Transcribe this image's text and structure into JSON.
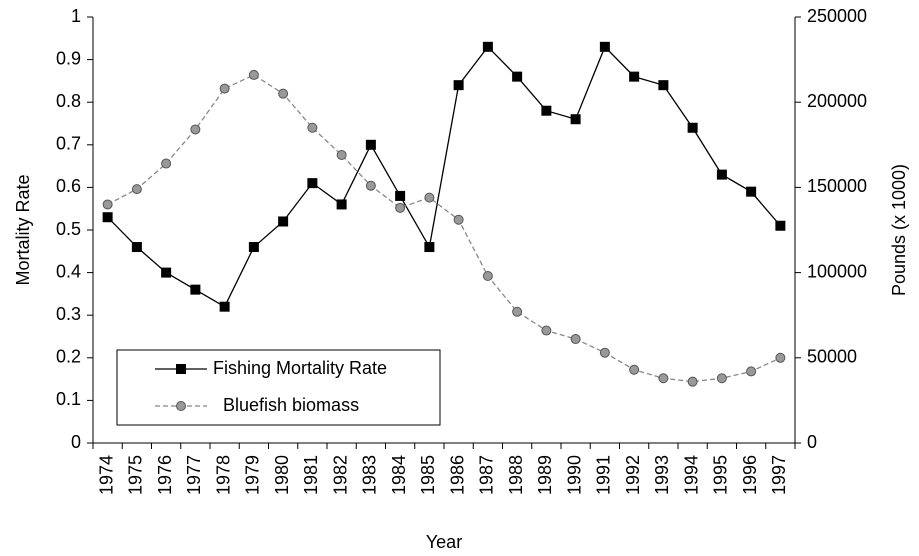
{
  "chart_data": {
    "type": "line",
    "x_label": "Year",
    "y_label": "Mortality Rate",
    "y2_label": "Pounds (x 1000)",
    "categories": [
      "1974",
      "1975",
      "1976",
      "1977",
      "1978",
      "1979",
      "1980",
      "1981",
      "1982",
      "1983",
      "1984",
      "1985",
      "1986",
      "1987",
      "1988",
      "1989",
      "1990",
      "1991",
      "1992",
      "1993",
      "1994",
      "1995",
      "1996",
      "1997"
    ],
    "series": [
      {
        "name": "Fishing Mortality Rate",
        "color": "#000000",
        "marker": "square",
        "dashed": false,
        "values": [
          0.53,
          0.46,
          0.4,
          0.36,
          0.32,
          0.46,
          0.52,
          0.61,
          0.56,
          0.7,
          0.58,
          0.46,
          0.84,
          0.93,
          0.86,
          0.78,
          0.76,
          0.93,
          0.86,
          0.84,
          0.74,
          0.63,
          0.59,
          0.51
        ]
      },
      {
        "name": "Bluefish biomass",
        "color": "#999999",
        "marker": "circle",
        "dashed": true,
        "axis": "y2",
        "values": [
          140000,
          149000,
          164000,
          184000,
          208000,
          216000,
          205000,
          185000,
          169000,
          151000,
          138000,
          144000,
          131000,
          98000,
          77000,
          66000,
          61000,
          53000,
          43000,
          38000,
          36000,
          38000,
          42000,
          50000
        ]
      }
    ],
    "ylim": [
      0,
      1
    ],
    "yticks": [
      0,
      0.1,
      0.2,
      0.3,
      0.4,
      0.5,
      0.6,
      0.7,
      0.8,
      0.9,
      1
    ],
    "y2lim": [
      0,
      250000
    ],
    "y2ticks": [
      0,
      50000,
      100000,
      150000,
      200000,
      250000
    ],
    "legend": "lower left"
  }
}
